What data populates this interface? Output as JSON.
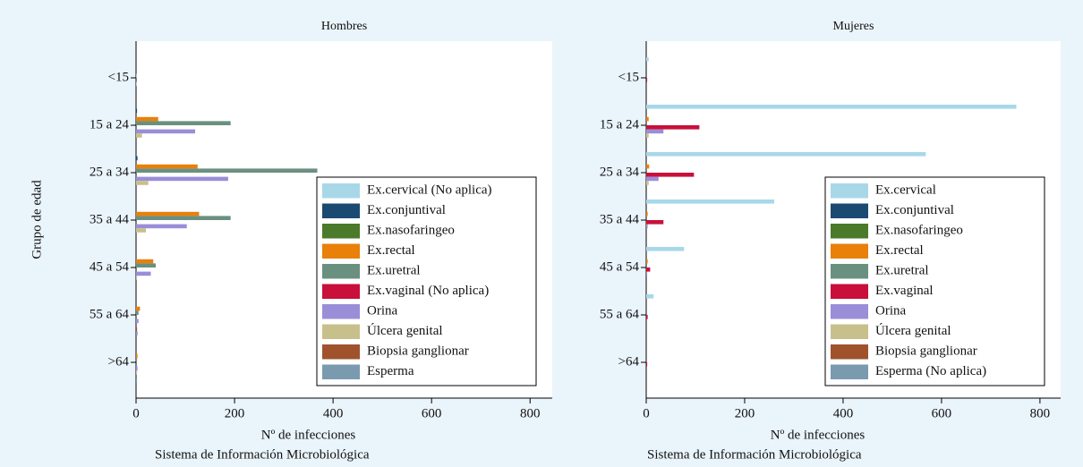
{
  "chart_data": [
    {
      "type": "hbar",
      "title": "Hombres",
      "xlabel": "Nº de infecciones",
      "ylabel": "Grupo de edad",
      "note": "Sistema de Información Microbiológica",
      "categories": [
        "<15",
        "15 a 24",
        "25 a 34",
        "35 a 44",
        "45 a 54",
        "55 a 64",
        ">64"
      ],
      "xlim": [
        0,
        845
      ],
      "xticks": [
        0,
        200,
        400,
        600,
        800
      ],
      "legend": "lower right",
      "series": [
        {
          "name": "Ex.cervical (No aplica)",
          "color": "#a8d8e8",
          "values": [
            0,
            0,
            0,
            0,
            0,
            0,
            0
          ]
        },
        {
          "name": "Ex.conjuntival",
          "color": "#1a4a72",
          "values": [
            0,
            2,
            3,
            0,
            0,
            0,
            0
          ]
        },
        {
          "name": "Ex.nasofaringeo",
          "color": "#4a7a2a",
          "values": [
            0,
            0,
            0,
            0,
            0,
            0,
            0
          ]
        },
        {
          "name": "Ex.rectal",
          "color": "#e8800a",
          "values": [
            0,
            45,
            125,
            128,
            35,
            8,
            3
          ]
        },
        {
          "name": "Ex.uretral",
          "color": "#6a9080",
          "values": [
            1,
            192,
            368,
            192,
            40,
            5,
            2
          ]
        },
        {
          "name": "Ex.vaginal (No aplica)",
          "color": "#c8103a",
          "values": [
            0,
            0,
            0,
            0,
            0,
            0,
            0
          ]
        },
        {
          "name": "Orina",
          "color": "#9a8ed8",
          "values": [
            1,
            120,
            187,
            103,
            30,
            5,
            3
          ]
        },
        {
          "name": "Úlcera genital",
          "color": "#c8c08a",
          "values": [
            0,
            12,
            25,
            20,
            2,
            0,
            2
          ]
        },
        {
          "name": "Biopsia ganglionar",
          "color": "#a0522d",
          "values": [
            0,
            0,
            0,
            0,
            0,
            2,
            0
          ]
        },
        {
          "name": "Esperma",
          "color": "#7a9ab0",
          "values": [
            0,
            0,
            0,
            0,
            0,
            3,
            2
          ]
        }
      ]
    },
    {
      "type": "hbar",
      "title": "Mujeres",
      "xlabel": "Nº de infecciones",
      "note": "Sistema de Información Microbiológica",
      "categories": [
        "<15",
        "15 a 24",
        "25 a 34",
        "35 a 44",
        "45 a 54",
        "55 a 64",
        ">64"
      ],
      "xlim": [
        0,
        842
      ],
      "xticks": [
        0,
        200,
        400,
        600,
        800
      ],
      "legend": "lower right",
      "series": [
        {
          "name": "Ex.cervical",
          "color": "#a8d8e8",
          "values": [
            5,
            752,
            568,
            260,
            77,
            15,
            0
          ]
        },
        {
          "name": "Ex.conjuntival",
          "color": "#1a4a72",
          "values": [
            0,
            0,
            0,
            0,
            0,
            0,
            0
          ]
        },
        {
          "name": "Ex.nasofaringeo",
          "color": "#4a7a2a",
          "values": [
            0,
            0,
            0,
            0,
            0,
            0,
            0
          ]
        },
        {
          "name": "Ex.rectal",
          "color": "#e8800a",
          "values": [
            0,
            5,
            6,
            3,
            3,
            0,
            0
          ]
        },
        {
          "name": "Ex.uretral",
          "color": "#6a9080",
          "values": [
            0,
            0,
            0,
            0,
            0,
            0,
            0
          ]
        },
        {
          "name": "Ex.vaginal",
          "color": "#c8103a",
          "values": [
            2,
            108,
            97,
            35,
            8,
            3,
            2
          ]
        },
        {
          "name": "Orina",
          "color": "#9a8ed8",
          "values": [
            0,
            35,
            25,
            3,
            2,
            0,
            0
          ]
        },
        {
          "name": "Úlcera genital",
          "color": "#c8c08a",
          "values": [
            0,
            5,
            5,
            0,
            0,
            0,
            0
          ]
        },
        {
          "name": "Biopsia ganglionar",
          "color": "#a0522d",
          "values": [
            0,
            0,
            0,
            0,
            0,
            0,
            0
          ]
        },
        {
          "name": "Esperma (No aplica)",
          "color": "#7a9ab0",
          "values": [
            0,
            0,
            0,
            0,
            0,
            0,
            0
          ]
        }
      ]
    }
  ]
}
